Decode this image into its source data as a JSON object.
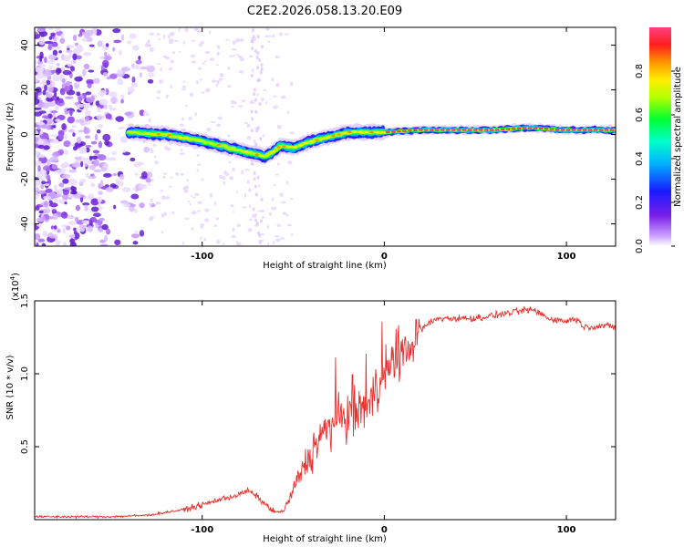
{
  "chart_data": [
    {
      "type": "heatmap",
      "title": "C2E2.2026.058.13.20.E09",
      "xlabel": "Height of straight line (km)",
      "ylabel": "Frequency (Hz)",
      "xlim": [
        -192,
        127
      ],
      "ylim": [
        -50,
        48
      ],
      "xticks": [
        -100,
        0,
        100
      ],
      "xtick_labels": [
        "-100",
        "0",
        "100"
      ],
      "yticks": [
        40,
        20,
        0,
        -20,
        -40
      ],
      "ytick_labels": [
        "40",
        "20",
        "0",
        "-20",
        "-40"
      ],
      "colorbar": {
        "label": "Normalized spectral amplitude",
        "range": [
          0,
          1
        ],
        "ticks": [
          0.0,
          0.2,
          0.4,
          0.6,
          0.8
        ],
        "tick_labels": [
          "0.0",
          "0.2",
          "0.4",
          "0.6",
          "0.8"
        ],
        "colormap": "rainbow (white-violet-blue-cyan-green-yellow-red-magenta)"
      },
      "ridge": {
        "description": "Dominant frequency track vs height",
        "x": [
          -140,
          -120,
          -100,
          -80,
          -65,
          -57,
          -50,
          -40,
          -30,
          -20,
          -10,
          0,
          20,
          40,
          60,
          80,
          100,
          127
        ],
        "y": [
          1,
          0,
          -3,
          -7,
          -10,
          -5,
          -6,
          -3,
          -1,
          1,
          1,
          1,
          2,
          2,
          2,
          3,
          2,
          2
        ]
      }
    },
    {
      "type": "line",
      "xlabel": "Height of straight line (km)",
      "ylabel": "SNR (10 * v/v)",
      "y_multiplier_label": "(x10",
      "y_multiplier_exp": "4",
      "y_multiplier_close": ")",
      "xlim": [
        -192,
        127
      ],
      "ylim": [
        0,
        1.5
      ],
      "xticks": [
        -100,
        0,
        100
      ],
      "xtick_labels": [
        "-100",
        "0",
        "100"
      ],
      "yticks": [
        0.5,
        1.0,
        1.5
      ],
      "ytick_labels": [
        "0.5",
        "1.0",
        "1.5"
      ],
      "series": [
        {
          "name": "SNR",
          "color": "#e8302a",
          "x": [
            -192,
            -170,
            -150,
            -130,
            -120,
            -110,
            -100,
            -90,
            -80,
            -75,
            -70,
            -65,
            -60,
            -55,
            -50,
            -45,
            -40,
            -35,
            -30,
            -25,
            -20,
            -15,
            -10,
            -5,
            0,
            5,
            10,
            15,
            20,
            25,
            30,
            40,
            50,
            60,
            70,
            80,
            85,
            90,
            100,
            105,
            110,
            120,
            127
          ],
          "y": [
            0.02,
            0.02,
            0.02,
            0.03,
            0.05,
            0.07,
            0.1,
            0.14,
            0.17,
            0.2,
            0.16,
            0.1,
            0.05,
            0.06,
            0.2,
            0.35,
            0.45,
            0.58,
            0.62,
            0.7,
            0.72,
            0.75,
            0.78,
            0.88,
            1.0,
            1.05,
            1.12,
            1.2,
            1.3,
            1.35,
            1.38,
            1.38,
            1.38,
            1.4,
            1.42,
            1.44,
            1.42,
            1.38,
            1.36,
            1.38,
            1.32,
            1.33,
            1.32
          ]
        }
      ]
    }
  ]
}
